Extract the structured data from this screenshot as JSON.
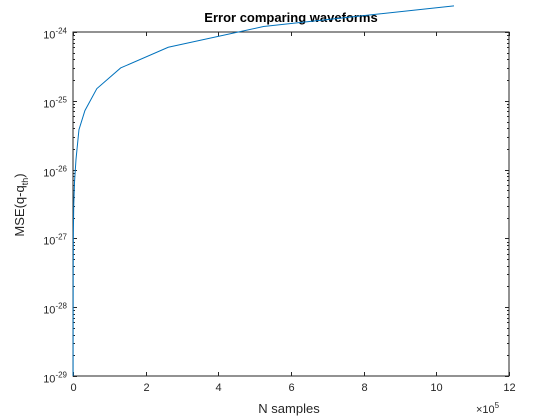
{
  "chart_data": {
    "type": "line",
    "title": "Error comparing waveforms",
    "xlabel": "N samples",
    "ylabel": {
      "base": "MSE(q-q",
      "subscript": "th",
      "suffix": ")"
    },
    "x_scale": "linear",
    "y_scale": "log",
    "x_exponent_label": {
      "base": "×10",
      "exponent": "5"
    },
    "xlim": [
      0,
      1200000
    ],
    "ylim": [
      1e-29,
      1e-24
    ],
    "x_ticks": [
      {
        "value": 0,
        "label": "0"
      },
      {
        "value": 200000,
        "label": "2"
      },
      {
        "value": 400000,
        "label": "4"
      },
      {
        "value": 600000,
        "label": "6"
      },
      {
        "value": 800000,
        "label": "8"
      },
      {
        "value": 1000000,
        "label": "10"
      },
      {
        "value": 1200000,
        "label": "12"
      }
    ],
    "y_ticks": [
      {
        "value": 1e-29,
        "base": "10",
        "exponent": "-29"
      },
      {
        "value": 1e-28,
        "base": "10",
        "exponent": "-28"
      },
      {
        "value": 1e-27,
        "base": "10",
        "exponent": "-27"
      },
      {
        "value": 1e-26,
        "base": "10",
        "exponent": "-26"
      },
      {
        "value": 1e-25,
        "base": "10",
        "exponent": "-25"
      },
      {
        "value": 1e-24,
        "base": "10",
        "exponent": "-24"
      }
    ],
    "grid": false,
    "series": [
      {
        "color": "#0072bd",
        "x": [
          256,
          512,
          1024,
          2048,
          4096,
          8192,
          16384,
          32768,
          65536,
          131072,
          262144,
          524288,
          1048576
        ],
        "y": [
          1e-29,
          3e-28,
          1.2e-27,
          3e-27,
          6.5e-27,
          1.4e-26,
          3.8e-26,
          7.2e-26,
          1.5e-25,
          3e-25,
          6e-25,
          1.2e-24,
          2.4e-24
        ]
      }
    ]
  }
}
